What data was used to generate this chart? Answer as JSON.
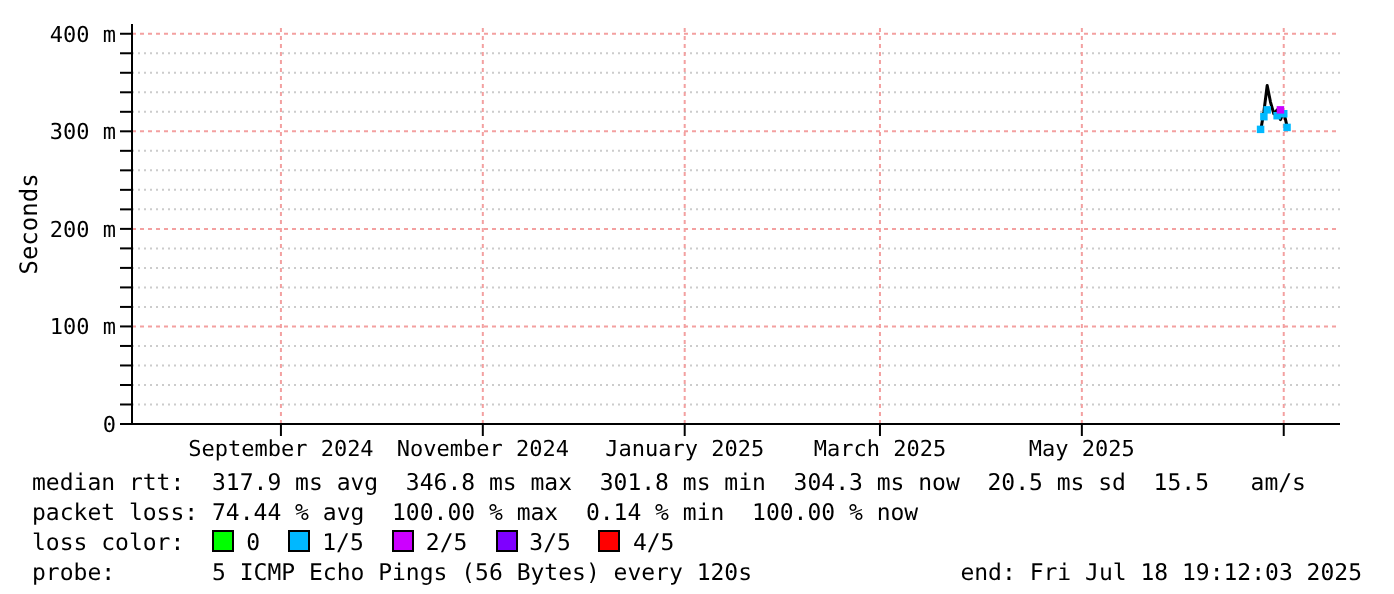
{
  "chart_data": {
    "type": "line",
    "ylabel": "Seconds",
    "x": [
      "2025-06-24",
      "2025-06-25",
      "2025-06-26",
      "2025-06-27",
      "2025-06-28",
      "2025-06-29",
      "2025-06-30",
      "2025-07-01",
      "2025-07-02"
    ],
    "xlim": [
      "2024-07-18",
      "2025-07-18"
    ],
    "xticks": [
      {
        "value": "2024-09-01",
        "label": "September 2024"
      },
      {
        "value": "2024-11-01",
        "label": "November 2024"
      },
      {
        "value": "2025-01-01",
        "label": "January 2025"
      },
      {
        "value": "2025-03-01",
        "label": "March 2025"
      },
      {
        "value": "2025-05-01",
        "label": "May 2025"
      },
      {
        "value": "2025-07-01",
        "label": null
      }
    ],
    "ylim": [
      0,
      410
    ],
    "yticks": [
      {
        "value": 0,
        "label": "0"
      },
      {
        "value": 20,
        "label": null
      },
      {
        "value": 40,
        "label": null
      },
      {
        "value": 60,
        "label": null
      },
      {
        "value": 80,
        "label": null
      },
      {
        "value": 100,
        "label": "100 m"
      },
      {
        "value": 120,
        "label": null
      },
      {
        "value": 140,
        "label": null
      },
      {
        "value": 160,
        "label": null
      },
      {
        "value": 180,
        "label": null
      },
      {
        "value": 200,
        "label": "200 m"
      },
      {
        "value": 220,
        "label": null
      },
      {
        "value": 240,
        "label": null
      },
      {
        "value": 260,
        "label": null
      },
      {
        "value": 280,
        "label": null
      },
      {
        "value": 300,
        "label": "300 m"
      },
      {
        "value": 320,
        "label": null
      },
      {
        "value": 340,
        "label": null
      },
      {
        "value": 360,
        "label": null
      },
      {
        "value": 380,
        "label": null
      },
      {
        "value": 400,
        "label": "400 m"
      }
    ],
    "grid": true,
    "legend": "bottom",
    "legend_title": "loss color:",
    "marker": "square",
    "series": [
      {
        "color": "#000000",
        "marker": "none",
        "values": [
          300,
          320,
          347,
          330,
          318,
          322,
          312,
          320,
          305
        ]
      },
      {
        "type": "scatter",
        "name": "0",
        "color": "#00ff00",
        "values": [
          null,
          null,
          null,
          null,
          null,
          null,
          null,
          null,
          null
        ]
      },
      {
        "type": "scatter",
        "name": "1/5",
        "color": "#00b8ff",
        "values": [
          302,
          315,
          322,
          null,
          null,
          316,
          null,
          318,
          304
        ]
      },
      {
        "type": "scatter",
        "name": "2/5",
        "color": "#cc00ff",
        "values": [
          null,
          null,
          null,
          null,
          null,
          null,
          322,
          null,
          null
        ]
      },
      {
        "type": "scatter",
        "name": "3/5",
        "color": "#7e00ff",
        "values": [
          null,
          null,
          null,
          null,
          null,
          null,
          null,
          null,
          null
        ]
      },
      {
        "type": "scatter",
        "name": "4/5",
        "color": "#ff0000",
        "values": [
          null,
          null,
          null,
          null,
          null,
          null,
          null,
          null,
          null
        ]
      }
    ],
    "annotations": [
      "median rtt:  317.9 ms avg  346.8 ms max  301.8 ms min  304.3 ms now  20.5 ms sd  15.5   am/s",
      "packet loss: 74.44 % avg  100.00 % max  0.14 % min  100.00 % now",
      "probe:       5 ICMP Echo Pings (56 Bytes) every 120s",
      "end: Fri Jul 18 19:12:03 2025"
    ]
  }
}
